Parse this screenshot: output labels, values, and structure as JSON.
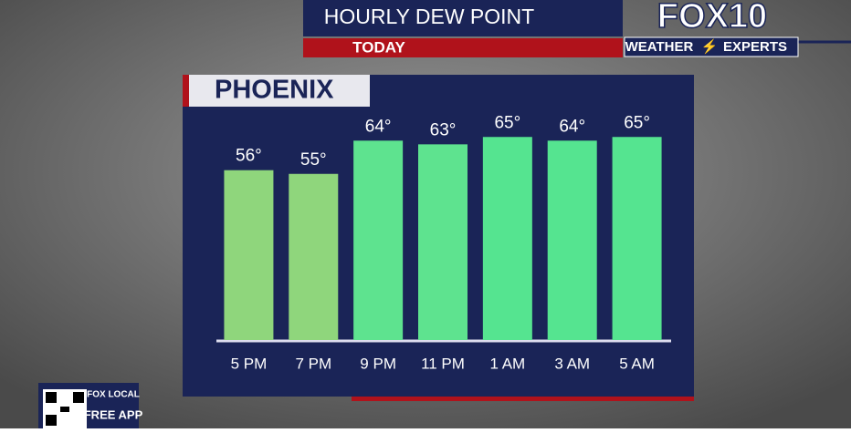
{
  "header": {
    "title": "HOURLY DEW POINT",
    "subtitle": "TODAY",
    "logo": "FOX10",
    "tagline_left": "WEATHER",
    "tagline_right": "EXPERTS"
  },
  "app_badge": {
    "brand": "FOX LOCAL",
    "label": "FREE APP"
  },
  "chart_data": {
    "type": "bar",
    "title": "PHOENIX",
    "categories": [
      "5 PM",
      "7 PM",
      "9 PM",
      "11 PM",
      "1 AM",
      "3 AM",
      "5 AM"
    ],
    "values": [
      56,
      55,
      64,
      63,
      65,
      64,
      65
    ],
    "value_labels": [
      "56°",
      "55°",
      "64°",
      "63°",
      "65°",
      "64°",
      "65°"
    ],
    "colors": [
      "#8fd67c",
      "#8fd67c",
      "#5ee38f",
      "#5ee38f",
      "#55e490",
      "#55e490",
      "#55e490"
    ],
    "ylim": [
      10,
      70
    ]
  }
}
